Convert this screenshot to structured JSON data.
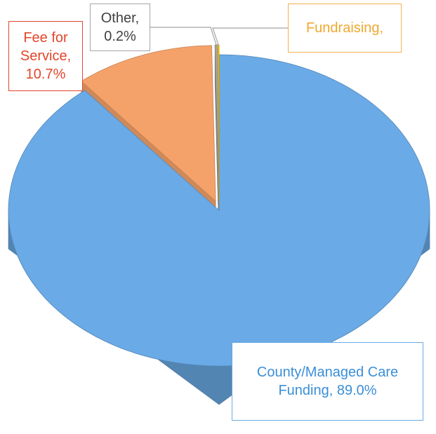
{
  "chart_data": {
    "type": "pie3d",
    "data_labels": [
      "County/Managed Care Funding, 89.0%",
      "Fee for Service, 10.7%",
      "Other, 0.2%",
      "Fundraising,"
    ],
    "values": [
      89.0,
      10.7,
      0.2,
      0.1
    ],
    "colors": [
      "#6aaae6",
      "#f5a26a",
      "#a5a5a5",
      "#ffc000"
    ],
    "label_colors": [
      "#3b8fd6",
      "#e4452a",
      "#404040",
      "#f0a830"
    ],
    "border_colors": [
      "#6aaae6",
      "#e4452a",
      "#a5a5a5",
      "#f5b050"
    ]
  }
}
